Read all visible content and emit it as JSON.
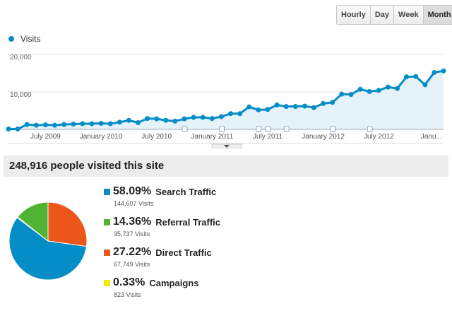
{
  "granularity": {
    "buttons": [
      "Hourly",
      "Day",
      "Week",
      "Month"
    ],
    "active": "Month"
  },
  "legend": {
    "label": "Visits",
    "color": "#058dc7"
  },
  "summary": "248,916 people visited this site",
  "chart_data": {
    "type": "area",
    "series": [
      {
        "name": "Visits",
        "values": [
          100,
          100,
          1300,
          1100,
          1200,
          1100,
          1300,
          1400,
          1500,
          1500,
          1600,
          1500,
          1900,
          2400,
          1800,
          2900,
          2800,
          2400,
          2200,
          2800,
          3200,
          3200,
          2900,
          3400,
          4200,
          4200,
          6000,
          5200,
          5300,
          6500,
          6100,
          6100,
          6200,
          5800,
          6900,
          7200,
          9400,
          9300,
          10700,
          10100,
          10400,
          11300,
          10900,
          14000,
          14100,
          11900,
          15200,
          15600
        ]
      }
    ],
    "x_start": "March 2009",
    "x_interval": "month",
    "x_tick_labels": [
      {
        "label": "July 2009",
        "index": 4
      },
      {
        "label": "January 2010",
        "index": 10
      },
      {
        "label": "July 2010",
        "index": 16
      },
      {
        "label": "January 2011",
        "index": 22
      },
      {
        "label": "July 2011",
        "index": 28
      },
      {
        "label": "January 2012",
        "index": 34
      },
      {
        "label": "July 2012",
        "index": 40
      },
      {
        "label": "Janu...",
        "index": 46
      }
    ],
    "annotation_indices": [
      19,
      23,
      27,
      28,
      30,
      35,
      39
    ],
    "y_ticks": [
      "10,000",
      "20,000"
    ],
    "ylim": [
      0,
      20000
    ],
    "grid": true
  },
  "traffic": [
    {
      "pct": "58.09%",
      "label": "Search Traffic",
      "visits": "144,607 Visits",
      "color": "#058dc7",
      "value": 58.09
    },
    {
      "pct": "14.36%",
      "label": "Referral Traffic",
      "visits": "35,737 Visits",
      "color": "#50b432",
      "value": 14.36
    },
    {
      "pct": "27.22%",
      "label": "Direct Traffic",
      "visits": "67,749 Visits",
      "color": "#ed561b",
      "value": 27.22
    },
    {
      "pct": "0.33%",
      "label": "Campaigns",
      "visits": "823 Visits",
      "color": "#edef00",
      "value": 0.33
    }
  ]
}
